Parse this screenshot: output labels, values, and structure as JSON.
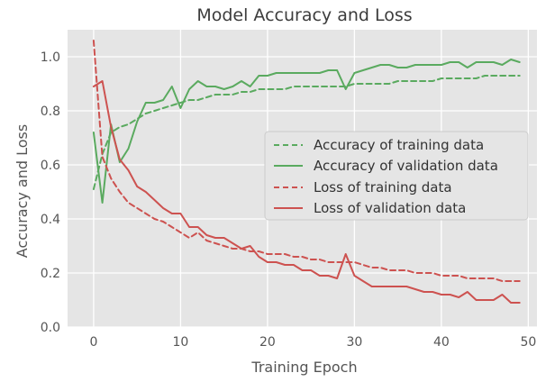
{
  "chart_data": {
    "type": "line",
    "title": "Model Accuracy and Loss",
    "xlabel": "Training Epoch",
    "ylabel": "Accuracy and Loss",
    "xlim": [
      -3,
      51
    ],
    "ylim": [
      0,
      1.1
    ],
    "xticks": [
      0,
      10,
      20,
      30,
      40,
      50
    ],
    "yticks": [
      0.0,
      0.2,
      0.4,
      0.6,
      0.8,
      1.0
    ],
    "xtick_labels": [
      "0",
      "10",
      "20",
      "30",
      "40",
      "50"
    ],
    "ytick_labels": [
      "0.0",
      "0.2",
      "0.4",
      "0.6",
      "0.8",
      "1.0"
    ],
    "grid": true,
    "legend_position": "center-right",
    "colors": {
      "background": "#e5e5e5",
      "grid": "#ffffff",
      "green": "#5aaa5f",
      "red": "#cd5250",
      "legend_bg": "#e5e5e5",
      "legend_border": "#cccccc"
    },
    "x": [
      0,
      1,
      2,
      3,
      4,
      5,
      6,
      7,
      8,
      9,
      10,
      11,
      12,
      13,
      14,
      15,
      16,
      17,
      18,
      19,
      20,
      21,
      22,
      23,
      24,
      25,
      26,
      27,
      28,
      29,
      30,
      31,
      32,
      33,
      34,
      35,
      36,
      37,
      38,
      39,
      40,
      41,
      42,
      43,
      44,
      45,
      46,
      47,
      48,
      49
    ],
    "series": [
      {
        "name": "Accuracy of training data",
        "color": "green",
        "dashed": true,
        "values": [
          0.51,
          0.64,
          0.72,
          0.74,
          0.75,
          0.77,
          0.79,
          0.8,
          0.81,
          0.82,
          0.83,
          0.84,
          0.84,
          0.85,
          0.86,
          0.86,
          0.86,
          0.87,
          0.87,
          0.88,
          0.88,
          0.88,
          0.88,
          0.89,
          0.89,
          0.89,
          0.89,
          0.89,
          0.89,
          0.89,
          0.9,
          0.9,
          0.9,
          0.9,
          0.9,
          0.91,
          0.91,
          0.91,
          0.91,
          0.91,
          0.92,
          0.92,
          0.92,
          0.92,
          0.92,
          0.93,
          0.93,
          0.93,
          0.93,
          0.93
        ]
      },
      {
        "name": "Accuracy of validation data",
        "color": "green",
        "dashed": false,
        "values": [
          0.72,
          0.46,
          0.75,
          0.61,
          0.66,
          0.76,
          0.83,
          0.83,
          0.84,
          0.89,
          0.81,
          0.88,
          0.91,
          0.89,
          0.89,
          0.88,
          0.89,
          0.91,
          0.89,
          0.93,
          0.93,
          0.94,
          0.94,
          0.94,
          0.94,
          0.94,
          0.94,
          0.95,
          0.95,
          0.88,
          0.94,
          0.95,
          0.96,
          0.97,
          0.97,
          0.96,
          0.96,
          0.97,
          0.97,
          0.97,
          0.97,
          0.98,
          0.98,
          0.96,
          0.98,
          0.98,
          0.98,
          0.97,
          0.99,
          0.98
        ]
      },
      {
        "name": "Loss of training data",
        "color": "red",
        "dashed": true,
        "values": [
          1.06,
          0.63,
          0.55,
          0.5,
          0.46,
          0.44,
          0.42,
          0.4,
          0.39,
          0.37,
          0.35,
          0.33,
          0.35,
          0.32,
          0.31,
          0.3,
          0.29,
          0.29,
          0.28,
          0.28,
          0.27,
          0.27,
          0.27,
          0.26,
          0.26,
          0.25,
          0.25,
          0.24,
          0.24,
          0.24,
          0.24,
          0.23,
          0.22,
          0.22,
          0.21,
          0.21,
          0.21,
          0.2,
          0.2,
          0.2,
          0.19,
          0.19,
          0.19,
          0.18,
          0.18,
          0.18,
          0.18,
          0.17,
          0.17,
          0.17
        ]
      },
      {
        "name": "Loss of validation data",
        "color": "red",
        "dashed": false,
        "values": [
          0.89,
          0.91,
          0.74,
          0.62,
          0.58,
          0.52,
          0.5,
          0.47,
          0.44,
          0.42,
          0.42,
          0.37,
          0.37,
          0.34,
          0.33,
          0.33,
          0.31,
          0.29,
          0.3,
          0.26,
          0.24,
          0.24,
          0.23,
          0.23,
          0.21,
          0.21,
          0.19,
          0.19,
          0.18,
          0.27,
          0.19,
          0.17,
          0.15,
          0.15,
          0.15,
          0.15,
          0.15,
          0.14,
          0.13,
          0.13,
          0.12,
          0.12,
          0.11,
          0.13,
          0.1,
          0.1,
          0.1,
          0.12,
          0.09,
          0.09
        ]
      }
    ]
  }
}
